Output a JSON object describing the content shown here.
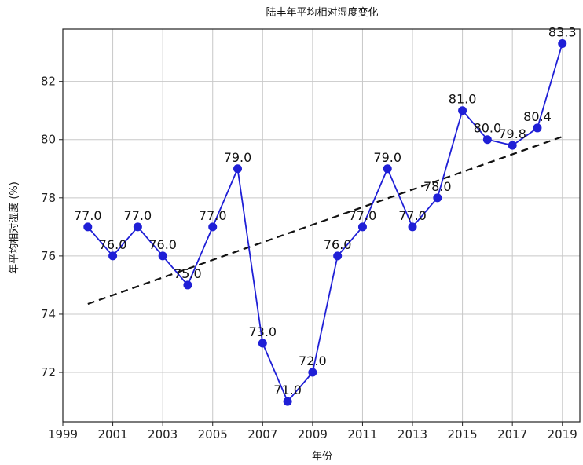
{
  "chart_data": {
    "type": "line",
    "title": "陆丰年平均相对湿度变化",
    "xlabel": "年份",
    "ylabel": "年平均相对湿度 (%)",
    "x": [
      2000,
      2001,
      2002,
      2003,
      2004,
      2005,
      2006,
      2007,
      2008,
      2009,
      2010,
      2011,
      2012,
      2013,
      2014,
      2015,
      2016,
      2017,
      2018,
      2019
    ],
    "series": [
      {
        "values": [
          77.0,
          76.0,
          77.0,
          76.0,
          75.0,
          77.0,
          79.0,
          73.0,
          71.0,
          72.0,
          76.0,
          77.0,
          79.0,
          77.0,
          78.0,
          81.0,
          80.0,
          79.8,
          80.4,
          83.3
        ],
        "labels": [
          "77.0",
          "76.0",
          "77.0",
          "76.0",
          "75.0",
          "77.0",
          "79.0",
          "73.0",
          "71.0",
          "72.0",
          "76.0",
          "77.0",
          "79.0",
          "77.0",
          "78.0",
          "81.0",
          "80.0",
          "79.8",
          "80.4",
          "83.3"
        ],
        "color": "#1f1fd6",
        "marker": "circle"
      }
    ],
    "trend": {
      "style": "dashed",
      "color": "#111111",
      "start": [
        2000,
        74.35
      ],
      "end": [
        2019,
        80.1
      ]
    },
    "xlim": [
      1999,
      2019.7
    ],
    "ylim": [
      70.3,
      83.8
    ],
    "xticks": [
      1999,
      2001,
      2003,
      2005,
      2007,
      2009,
      2011,
      2013,
      2015,
      2017,
      2019
    ],
    "xtick_labels": [
      "1999",
      "2001",
      "2003",
      "2005",
      "2007",
      "2009",
      "2011",
      "2013",
      "2015",
      "2017",
      "2019"
    ],
    "yticks": [
      72,
      74,
      76,
      78,
      80,
      82
    ],
    "ytick_labels": [
      "72",
      "74",
      "76",
      "78",
      "80",
      "82"
    ],
    "grid": true,
    "legend": "none"
  }
}
